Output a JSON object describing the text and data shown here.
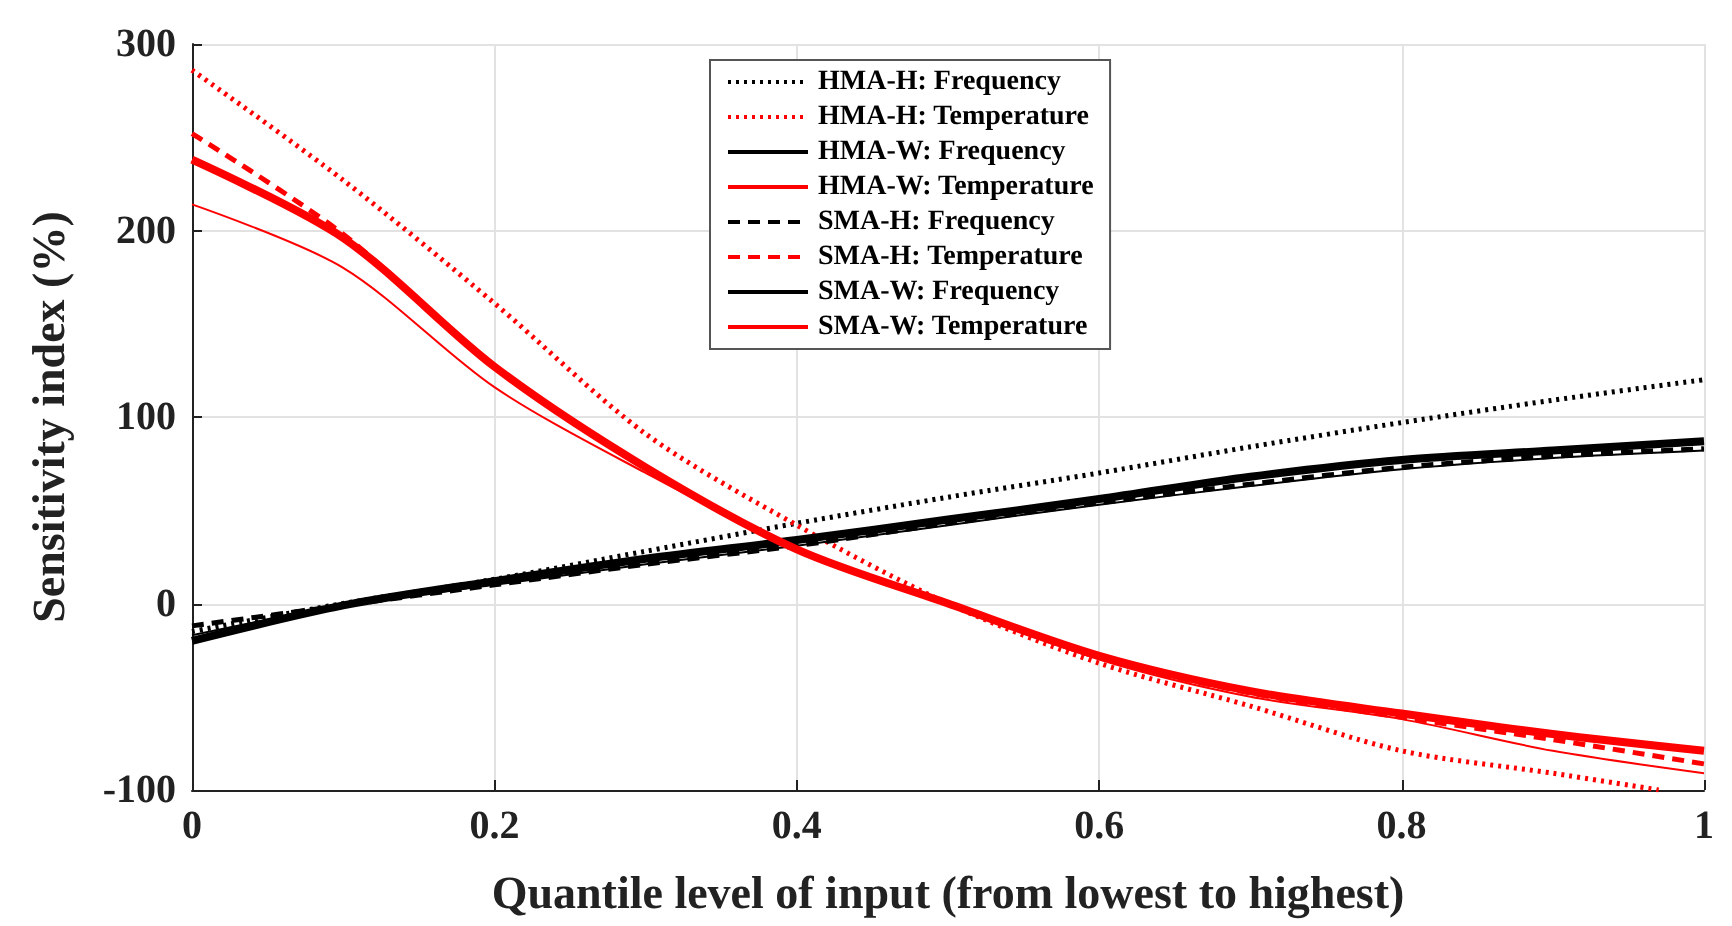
{
  "chart_data": {
    "type": "line",
    "xlabel": "Quantile level of input (from lowest to highest)",
    "ylabel": "Sensitivity index (%)",
    "x": [
      0,
      0.1,
      0.2,
      0.3,
      0.4,
      0.5,
      0.6,
      0.7,
      0.8,
      0.9,
      1
    ],
    "xlim": [
      0,
      1
    ],
    "xticks": [
      0,
      0.2,
      0.4,
      0.6,
      0.8,
      1
    ],
    "ylim": [
      -100,
      300
    ],
    "yticks": [
      -100,
      0,
      100,
      200,
      300
    ],
    "grid": true,
    "legend": "top",
    "marker": "none",
    "series": [
      {
        "name": "HMA-H: Frequency",
        "color": "#000000",
        "line_style": "dotted",
        "values": [
          -15,
          0,
          13,
          28,
          43,
          57,
          70,
          84,
          97,
          109,
          120
        ]
      },
      {
        "name": "HMA-H: Temperature",
        "color": "#ff0000",
        "line_style": "dotted",
        "x": [
          0,
          0.1,
          0.2,
          0.3,
          0.4,
          0.5,
          0.6,
          0.7,
          0.8,
          0.9,
          0.97
        ],
        "values": [
          286,
          227,
          161,
          91,
          42,
          0,
          -32,
          -55,
          -79,
          -91,
          -100
        ]
      },
      {
        "name": "HMA-W: Frequency",
        "color": "#000000",
        "line_style": "solid",
        "values": [
          -17,
          -1,
          10,
          21,
          31,
          42,
          53,
          63,
          72,
          78,
          82
        ]
      },
      {
        "name": "HMA-W: Temperature",
        "color": "#ff0000",
        "line_style": "solid",
        "values": [
          214,
          180,
          116,
          70,
          29,
          0,
          -30,
          -50,
          -62,
          -79,
          -91
        ]
      },
      {
        "name": "SMA-H: Frequency",
        "color": "#000000",
        "line_style": "dashed",
        "values": [
          -12,
          -1,
          10,
          21,
          31,
          43,
          54,
          64,
          73,
          79,
          83
        ]
      },
      {
        "name": "SMA-H: Temperature",
        "color": "#ff0000",
        "line_style": "dashed",
        "values": [
          252,
          198,
          127,
          73,
          29,
          0,
          -29,
          -48,
          -61,
          -73,
          -86
        ]
      },
      {
        "name": "SMA-W: Frequency",
        "color": "#000000",
        "line_style": "solid",
        "values": [
          -20,
          -1,
          12,
          24,
          34,
          45,
          56,
          68,
          77,
          82,
          87
        ]
      },
      {
        "name": "SMA-W: Temperature",
        "color": "#ff0000",
        "line_style": "solid",
        "values": [
          238,
          196,
          127,
          73,
          29,
          0,
          -28,
          -47,
          -59,
          -70,
          -79
        ]
      }
    ]
  }
}
